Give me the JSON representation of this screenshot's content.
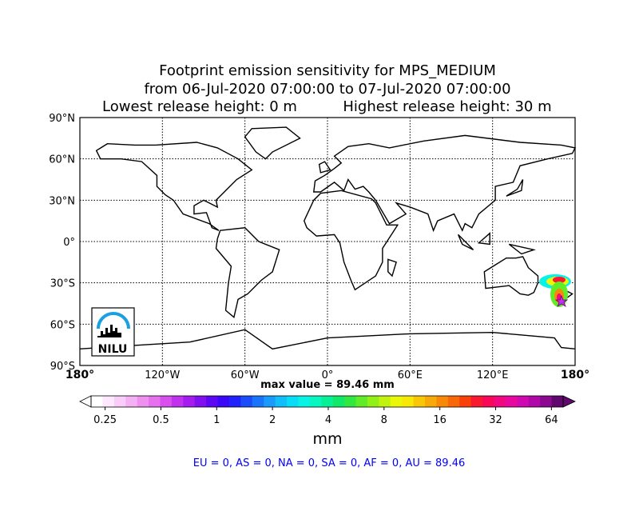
{
  "header": {
    "title": "Footprint emission sensitivity for MPS_MEDIUM",
    "period": "from 06-Jul-2020 07:00:00 to 07-Jul-2020 07:00:00",
    "lowest_release": "Lowest release height: 0 m",
    "highest_release": "Highest release height: 30 m"
  },
  "map": {
    "xlim": [
      -180,
      180
    ],
    "ylim": [
      -90,
      90
    ],
    "grid": true,
    "xticks": [
      {
        "value": -180,
        "label": "180°"
      },
      {
        "value": -120,
        "label": "120°W"
      },
      {
        "value": -60,
        "label": "60°W"
      },
      {
        "value": 0,
        "label": "0°"
      },
      {
        "value": 60,
        "label": "60°E"
      },
      {
        "value": 120,
        "label": "120°E"
      },
      {
        "value": 180,
        "label": "180°"
      }
    ],
    "yticks": [
      {
        "value": 90,
        "label": "90°N"
      },
      {
        "value": 60,
        "label": "60°N"
      },
      {
        "value": 30,
        "label": "30°N"
      },
      {
        "value": 0,
        "label": "0°"
      },
      {
        "value": -30,
        "label": "30°S"
      },
      {
        "value": -60,
        "label": "60°S"
      },
      {
        "value": -90,
        "label": "90°S"
      }
    ],
    "logo": "NILU"
  },
  "max_value": "max value = 89.46 mm",
  "colorbar": {
    "log_scale": true,
    "lim": [
      0.21,
      74
    ],
    "unit": "mm",
    "ticks": [
      0.25,
      0.5,
      1,
      2,
      4,
      8,
      16,
      32,
      64
    ],
    "colors": [
      "#ffffff",
      "#fde8fd",
      "#f9cdf9",
      "#f4b0f4",
      "#ee90ee",
      "#e670ee",
      "#d84fee",
      "#c232ee",
      "#a51cee",
      "#8010ee",
      "#5c08f2",
      "#3a08f6",
      "#1f22fa",
      "#1a4cfa",
      "#1a74fa",
      "#1a9afa",
      "#12befa",
      "#08dcf6",
      "#08f2e6",
      "#08f6c0",
      "#08f096",
      "#10e86a",
      "#30e840",
      "#60ec28",
      "#90f018",
      "#c0f410",
      "#e8f808",
      "#f8e808",
      "#f8c808",
      "#f8a808",
      "#f88808",
      "#f86808",
      "#f84008",
      "#f81830",
      "#f80858",
      "#f00880",
      "#e808a0",
      "#d008b0",
      "#b008a8",
      "#8c0890",
      "#60086c"
    ]
  },
  "regions": "EU = 0,  AS = 0,  NA = 0,  SA = 0,  AF = 0,  AU = 89.46"
}
